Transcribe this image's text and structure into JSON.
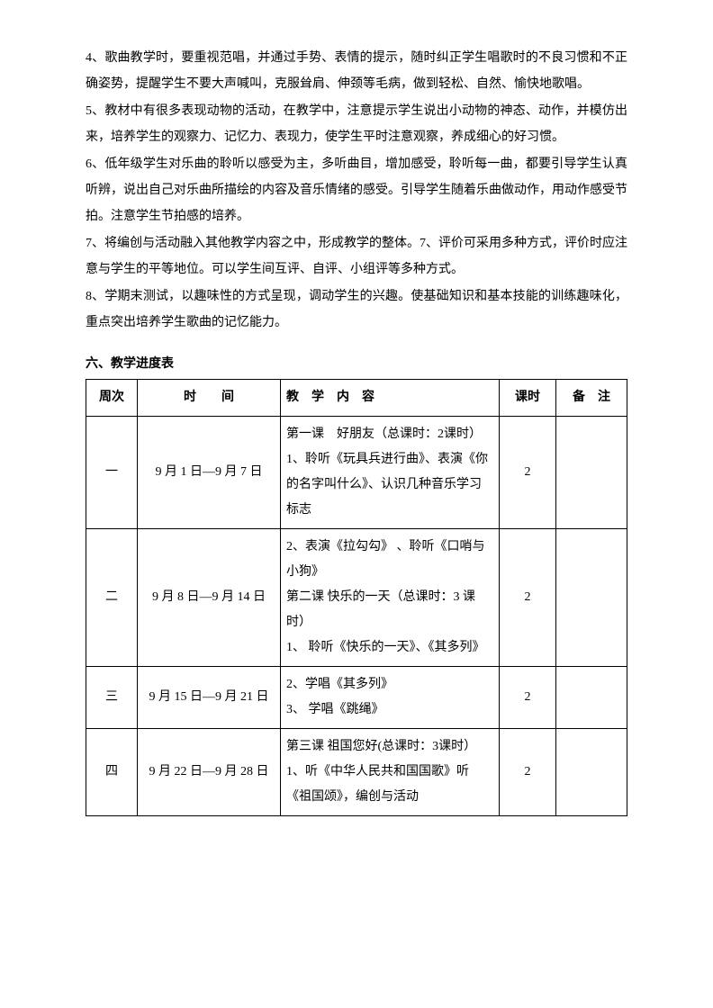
{
  "paragraphs": {
    "p4": "4、歌曲教学时，要重视范唱，并通过手势、表情的提示，随时纠正学生唱歌时的不良习惯和不正确姿势，提醒学生不要大声喊叫，克服耸肩、伸颈等毛病，做到轻松、自然、愉快地歌唱。",
    "p5": "5、教材中有很多表现动物的活动，在教学中，注意提示学生说出小动物的神态、动作，并模仿出来，培养学生的观察力、记忆力、表现力，使学生平时注意观察，养成细心的好习惯。",
    "p6": "6、低年级学生对乐曲的聆听以感受为主，多听曲目，增加感受，聆听每一曲，都要引导学生认真听辨，说出自己对乐曲所描绘的内容及音乐情绪的感受。引导学生随着乐曲做动作，用动作感受节拍。注意学生节拍感的培养。",
    "p7": "7、将编创与活动融入其他教学内容之中，形成教学的整体。7、评价可采用多种方式，评价时应注意与学生的平等地位。可以学生间互评、自评、小组评等多种方式。",
    "p8": "8、学期末测试，以趣味性的方式呈现，调动学生的兴趣。使基础知识和基本技能的训练趣味化，重点突出培养学生歌曲的记忆能力。"
  },
  "section_title": "六、教学进度表",
  "table": {
    "headers": {
      "week": "周次",
      "time": "时　　间",
      "content": "教　学　内　容",
      "hours": "课时",
      "note": "备　注"
    },
    "rows": [
      {
        "week": "一",
        "time": "9 月 1 日—9 月 7 日",
        "content": "第一课　好朋友（总课时：2课时）\n1、聆听《玩具兵进行曲》、表演《你的名字叫什么》、认识几种音乐学习标志",
        "hours": "2",
        "note": ""
      },
      {
        "week": "二",
        "time": "9 月 8 日—9 月 14 日",
        "content": "2、表演《拉勾勾》 、聆听《口哨与小狗》\n第二课 快乐的一天（总课时：3 课时）\n1、 聆听《快乐的一天》、《其多列》",
        "hours": "2",
        "note": ""
      },
      {
        "week": "三",
        "time": "9 月 15 日—9 月 21 日",
        "content": "2、学唱《其多列》\n3、 学唱《跳绳》",
        "hours": "2",
        "note": ""
      },
      {
        "week": "四",
        "time": "9 月 22 日—9 月 28 日",
        "content": "第三课 祖国您好(总课时：3课时）\n1、听《中华人民共和国国歌》听《祖国颂》，编创与活动",
        "hours": "2",
        "note": ""
      }
    ]
  }
}
